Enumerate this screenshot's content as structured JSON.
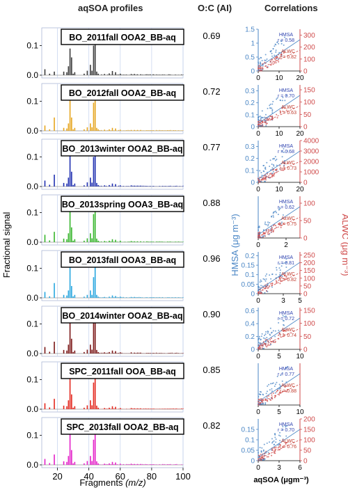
{
  "headers": {
    "profiles": "aqSOA profiles",
    "oc": "O:C (AI)",
    "correlations": "Correlations"
  },
  "labels": {
    "ylabel": "Fractional signal",
    "xlabel_main": "Fragments ",
    "xlabel_unit": "(m/z)",
    "corr_xlabel": "aqSOA (μgm⁻³)",
    "hmsa_axis": "HMSA (μg m⁻³)",
    "alwc_axis": "ALWC (μg m⁻³)"
  },
  "colors": {
    "hmsa": "#4a86c5",
    "alwc": "#cf4a4a",
    "grid": "#c9d6ef"
  },
  "chart_data": [
    {
      "type": "bar",
      "panel": "aqSOA profiles",
      "x_ticks": [
        20,
        40,
        60,
        80,
        100
      ],
      "y_ticks": [
        0.0,
        0.1
      ],
      "xlim": [
        10,
        100
      ],
      "ylim": [
        0,
        0.16
      ],
      "ion_mz": [
        12,
        15,
        18,
        24,
        26,
        27,
        28,
        29,
        30,
        31,
        37,
        39,
        41,
        42,
        43,
        44,
        45,
        46,
        50,
        53,
        55,
        57,
        60,
        67,
        69,
        71,
        73,
        77,
        79,
        81,
        91,
        95
      ],
      "series": [
        {
          "name": "BO_2011fall OOA2_BB-aq",
          "color": "#3b3b3b",
          "oc": "0.69",
          "values": [
            0.02,
            0.005,
            0.012,
            0.012,
            0.01,
            0.03,
            0.09,
            0.06,
            0.005,
            0.01,
            0.005,
            0.015,
            0.035,
            0.015,
            0.1,
            0.115,
            0.012,
            0.005,
            0.004,
            0.006,
            0.014,
            0.01,
            0.005,
            0.004,
            0.004,
            0.003,
            0.003,
            0.003,
            0.003,
            0.003,
            0.003,
            0.002
          ]
        },
        {
          "name": "BO_2012fall OOA2_BB-aq",
          "color": "#e6a51e",
          "oc": "0.72",
          "values": [
            0.018,
            0.005,
            0.045,
            0.01,
            0.008,
            0.025,
            0.125,
            0.045,
            0.005,
            0.01,
            0.005,
            0.012,
            0.025,
            0.012,
            0.095,
            0.13,
            0.01,
            0.005,
            0.004,
            0.005,
            0.01,
            0.008,
            0.004,
            0.003,
            0.003,
            0.003,
            0.003,
            0.002,
            0.002,
            0.002,
            0.002,
            0.002
          ]
        },
        {
          "name": "BO_2013winter OOA2_BB-aq",
          "color": "#1f2fb0",
          "oc": "0.77",
          "values": [
            0.02,
            0.006,
            0.04,
            0.012,
            0.01,
            0.03,
            0.11,
            0.05,
            0.005,
            0.01,
            0.004,
            0.014,
            0.03,
            0.013,
            0.1,
            0.12,
            0.012,
            0.005,
            0.004,
            0.005,
            0.01,
            0.008,
            0.004,
            0.004,
            0.003,
            0.003,
            0.003,
            0.002,
            0.002,
            0.002,
            0.002,
            0.002
          ]
        },
        {
          "name": "BO_2013spring OOA3_BB-aq",
          "color": "#36b52b",
          "oc": "0.88",
          "values": [
            0.025,
            0.006,
            0.035,
            0.012,
            0.01,
            0.03,
            0.125,
            0.05,
            0.005,
            0.01,
            0.005,
            0.013,
            0.03,
            0.013,
            0.095,
            0.135,
            0.012,
            0.005,
            0.004,
            0.005,
            0.01,
            0.008,
            0.005,
            0.004,
            0.003,
            0.003,
            0.003,
            0.003,
            0.002,
            0.002,
            0.002,
            0.002
          ]
        },
        {
          "name": "BO_2013fall OOA3_BB-aq",
          "color": "#27a6df",
          "oc": "0.96",
          "values": [
            0.02,
            0.005,
            0.05,
            0.01,
            0.008,
            0.025,
            0.14,
            0.04,
            0.005,
            0.01,
            0.004,
            0.01,
            0.025,
            0.01,
            0.07,
            0.135,
            0.01,
            0.004,
            0.003,
            0.004,
            0.008,
            0.006,
            0.004,
            0.003,
            0.003,
            0.002,
            0.002,
            0.002,
            0.002,
            0.002,
            0.002,
            0.002
          ]
        },
        {
          "name": "BO_2014winter OOA2_BB-aq",
          "color": "#7a1616",
          "oc": "0.90",
          "values": [
            0.022,
            0.006,
            0.04,
            0.012,
            0.01,
            0.03,
            0.135,
            0.05,
            0.005,
            0.01,
            0.005,
            0.013,
            0.03,
            0.013,
            0.105,
            0.13,
            0.012,
            0.005,
            0.004,
            0.005,
            0.01,
            0.008,
            0.004,
            0.004,
            0.003,
            0.003,
            0.003,
            0.002,
            0.002,
            0.002,
            0.002,
            0.002
          ]
        },
        {
          "name": "SPC_2011fall OOA_BB-aq",
          "color": "#e3261c",
          "oc": "0.85",
          "values": [
            0.02,
            0.006,
            0.035,
            0.012,
            0.01,
            0.03,
            0.14,
            0.05,
            0.005,
            0.01,
            0.005,
            0.013,
            0.03,
            0.013,
            0.09,
            0.14,
            0.012,
            0.005,
            0.004,
            0.005,
            0.01,
            0.008,
            0.004,
            0.004,
            0.003,
            0.003,
            0.003,
            0.002,
            0.002,
            0.002,
            0.002,
            0.002
          ]
        },
        {
          "name": "SPC_2013fall OOA2_BB-aq",
          "color": "#e31fc8",
          "oc": "0.82",
          "values": [
            0.02,
            0.006,
            0.035,
            0.012,
            0.01,
            0.03,
            0.14,
            0.05,
            0.005,
            0.01,
            0.005,
            0.013,
            0.03,
            0.013,
            0.085,
            0.14,
            0.012,
            0.005,
            0.004,
            0.005,
            0.01,
            0.008,
            0.004,
            0.004,
            0.003,
            0.003,
            0.003,
            0.002,
            0.002,
            0.002,
            0.002,
            0.002
          ]
        }
      ]
    },
    {
      "type": "scatter",
      "panel": "Correlations",
      "x_label": "aqSOA (μgm⁻³)",
      "y_label_left": "HMSA (μg m⁻³)",
      "y_label_right": "ALWC (μg m⁻³)",
      "panels": [
        {
          "xlim": [
            0,
            20
          ],
          "x_ticks": [
            "0",
            "10",
            "20"
          ],
          "hmsa_ylim": [
            0,
            1.5
          ],
          "hmsa_ticks": [
            "0",
            "0.5",
            "1",
            "1.5"
          ],
          "alwc_ylim": [
            0,
            350
          ],
          "alwc_ticks": [
            "0",
            "100",
            "200",
            "300"
          ],
          "hmsa_r": "r = 0.58",
          "alwc_r": "r = 0.82",
          "hmsa_label": "HMSA",
          "alwc_label": "ALWC"
        },
        {
          "xlim": [
            0,
            20
          ],
          "x_ticks": [
            "0",
            "10",
            "20"
          ],
          "hmsa_ylim": [
            0,
            0.35
          ],
          "hmsa_ticks": [
            "0",
            "0.1",
            "0.2",
            "0.3"
          ],
          "alwc_ylim": [
            0,
            170
          ],
          "alwc_ticks": [
            "0",
            "50",
            "100",
            "150"
          ],
          "hmsa_r": "r = 0.70",
          "alwc_r": "r = 0.63",
          "hmsa_label": "HMSA",
          "alwc_label": "ALWC"
        },
        {
          "xlim": [
            0,
            20
          ],
          "x_ticks": [
            "0",
            "10",
            "20"
          ],
          "hmsa_ylim": [
            0,
            0.35
          ],
          "hmsa_ticks": [
            "0",
            "0.1",
            "0.2",
            "0.3"
          ],
          "alwc_ylim": [
            0,
            4000
          ],
          "alwc_ticks": [
            "0",
            "1000",
            "2000",
            "3000",
            "4000"
          ],
          "hmsa_r": "r = 0.68",
          "alwc_r": "r = 0.73",
          "hmsa_label": "HMSA",
          "alwc_label": "ALWC"
        },
        {
          "xlim": [
            0,
            3
          ],
          "x_ticks": [
            "0",
            "2"
          ],
          "hmsa_ylim": [
            0,
            0.8
          ],
          "hmsa_ticks": [],
          "alwc_ylim": [
            0,
            120
          ],
          "alwc_ticks": [
            "0",
            "50",
            "100"
          ],
          "hmsa_r": "r = 0.62",
          "alwc_r": "r = 0.75",
          "hmsa_label": "HMSA",
          "alwc_label": "ALWC"
        },
        {
          "xlim": [
            0,
            5
          ],
          "x_ticks": [
            "0",
            "3",
            "5"
          ],
          "hmsa_ylim": [
            0,
            0.22
          ],
          "hmsa_ticks": [
            "0",
            "0.05",
            "0.1",
            "0.15",
            "0.2"
          ],
          "alwc_ylim": [
            0,
            270
          ],
          "alwc_ticks": [
            "0",
            "50",
            "100",
            "150",
            "200",
            "250"
          ],
          "hmsa_r": "r = 0.81",
          "alwc_r": "r = 0.82",
          "hmsa_label": "HMSA",
          "alwc_label": "ALWC"
        },
        {
          "xlim": [
            0,
            10
          ],
          "x_ticks": [
            "0",
            "5",
            "10"
          ],
          "hmsa_ylim": [
            0,
            0.65
          ],
          "hmsa_ticks": [
            "0",
            "0.2",
            "0.4",
            "0.6"
          ],
          "alwc_ylim": [
            0,
            160
          ],
          "alwc_ticks": [
            "0",
            "50",
            "100",
            "150"
          ],
          "hmsa_r": "r = 0.72",
          "alwc_r": "r = 0.74",
          "hmsa_label": "HMSA",
          "alwc_label": "ALWC"
        },
        {
          "xlim": [
            0,
            10
          ],
          "x_ticks": [
            "0",
            "5",
            "10"
          ],
          "hmsa_ylim": [
            0,
            1
          ],
          "hmsa_ticks": [],
          "alwc_ylim": [
            0,
            1
          ],
          "alwc_ticks": [],
          "hmsa_r": "r = 0.77",
          "alwc_r": "r = 0.88",
          "hmsa_label": "HMSA",
          "alwc_label": "ALWC"
        },
        {
          "xlim": [
            0,
            6
          ],
          "x_ticks": [
            "0",
            "3",
            "6"
          ],
          "hmsa_ylim": [
            0,
            0.2
          ],
          "hmsa_ticks": [
            "0",
            "0.05",
            "0.1",
            "0.15"
          ],
          "alwc_ylim": [
            0,
            200
          ],
          "alwc_ticks": [
            "0",
            "50",
            "100",
            "150",
            "200"
          ],
          "hmsa_r": "r = 0.70",
          "alwc_r": "r = 0.76",
          "hmsa_label": "HMSA",
          "alwc_label": "ALWC"
        }
      ]
    }
  ]
}
